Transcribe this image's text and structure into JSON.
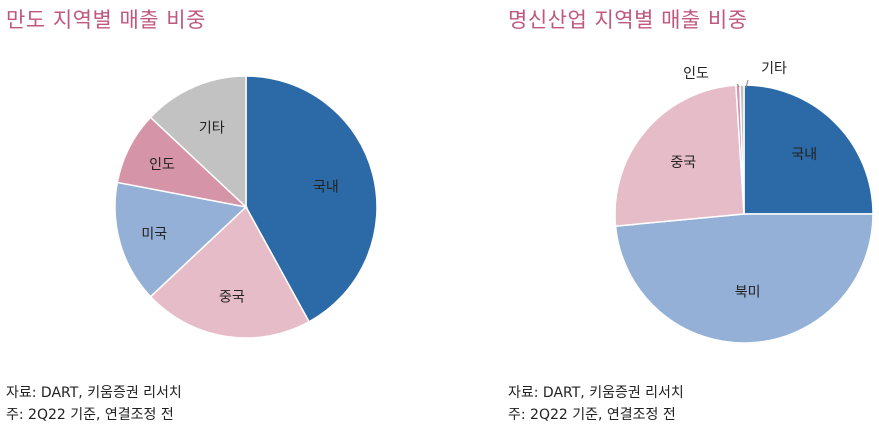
{
  "chart_data": [
    {
      "type": "pie",
      "title": "만도 지역별 매출 비중",
      "labels": [
        "국내",
        "중국",
        "미국",
        "인도",
        "기타"
      ],
      "values": [
        42,
        21,
        15,
        9,
        13
      ],
      "colors": [
        "#2b6aa6",
        "#e6bcc9",
        "#94b0d6",
        "#d694a9",
        "#c2c2c2"
      ],
      "source": "자료: DART, 키움증권 리서치",
      "note": "주: 2Q22 기준, 연결조정 전"
    },
    {
      "type": "pie",
      "title": "명신산업 지역별 매출 비중",
      "labels": [
        "국내",
        "북미",
        "중국",
        "인도",
        "기타"
      ],
      "values": [
        25,
        48.5,
        25.5,
        0.5,
        0.5
      ],
      "colors": [
        "#2b6aa6",
        "#94b0d6",
        "#e6bcc9",
        "#d694a9",
        "#c2c2c2"
      ],
      "source": "자료: DART, 키움증권 리서치",
      "note": "주: 2Q22 기준, 연결조정 전"
    }
  ]
}
